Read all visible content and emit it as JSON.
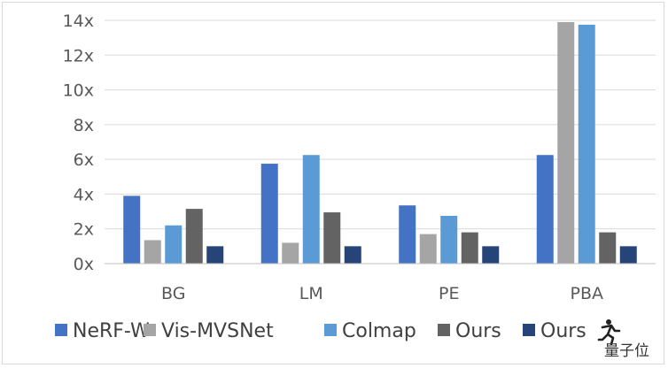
{
  "chart_data": {
    "type": "bar",
    "categories": [
      "BG",
      "LM",
      "PE",
      "PBA"
    ],
    "series": [
      {
        "name": "NeRF-W",
        "color": "#4472C4",
        "values": [
          3.9,
          5.75,
          3.35,
          6.25
        ]
      },
      {
        "name": "Vis-MVSNet",
        "color": "#A5A5A5",
        "values": [
          1.35,
          1.2,
          1.7,
          13.9
        ]
      },
      {
        "name": "Colmap",
        "color": "#5B9BD5",
        "values": [
          2.2,
          6.25,
          2.75,
          13.75
        ]
      },
      {
        "name": "Ours",
        "color": "#636363",
        "values": [
          3.15,
          2.95,
          1.8,
          1.8
        ]
      },
      {
        "name": "Ours",
        "color": "#264478",
        "values": [
          1.0,
          1.0,
          1.0,
          1.0
        ]
      }
    ],
    "ylim": [
      0,
      14
    ],
    "yticks": [
      0,
      2,
      4,
      6,
      8,
      10,
      12,
      14
    ],
    "ytick_labels": [
      "0x",
      "2x",
      "4x",
      "6x",
      "8x",
      "10x",
      "12x",
      "14x"
    ],
    "grid": true,
    "legend_position": "bottom"
  },
  "watermark": {
    "text": "量子位",
    "icon": "running-figure-icon"
  }
}
